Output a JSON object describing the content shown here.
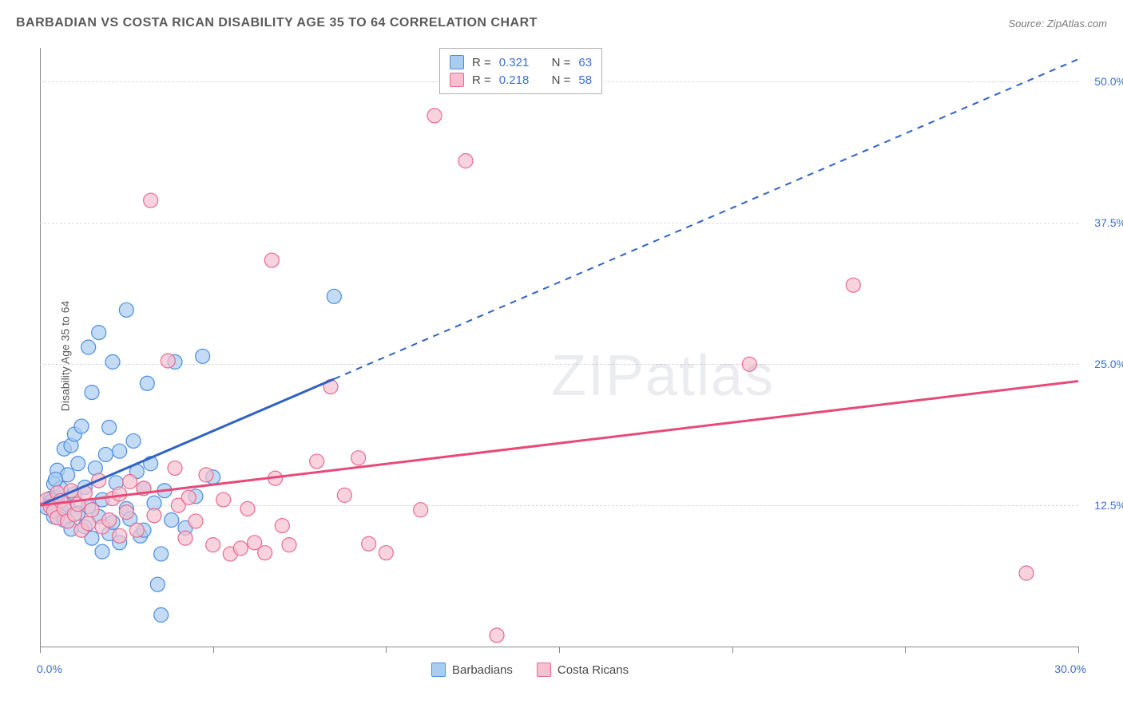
{
  "title": "BARBADIAN VS COSTA RICAN DISABILITY AGE 35 TO 64 CORRELATION CHART",
  "source": "Source: ZipAtlas.com",
  "y_axis_label": "Disability Age 35 to 64",
  "watermark": {
    "prefix": "ZIP",
    "suffix": "atlas"
  },
  "chart": {
    "type": "scatter",
    "background_color": "#ffffff",
    "grid_color": "#d8d8d8",
    "axis_color": "#888888",
    "tick_label_color": "#3b6fd4",
    "x_axis": {
      "min": 0,
      "max": 30,
      "tick_step": 5,
      "visible_labels": [
        {
          "v": 0,
          "t": "0.0%"
        },
        {
          "v": 30,
          "t": "30.0%"
        }
      ]
    },
    "y_axis": {
      "min": 0,
      "max": 53,
      "gridlines": [
        12.5,
        25,
        37.5,
        50
      ],
      "labels": [
        {
          "v": 12.5,
          "t": "12.5%"
        },
        {
          "v": 25,
          "t": "25.0%"
        },
        {
          "v": 37.5,
          "t": "37.5%"
        },
        {
          "v": 50,
          "t": "50.0%"
        }
      ]
    },
    "series": [
      {
        "name": "Barbadians",
        "color_fill": "#a9ccf1",
        "color_stroke": "#4b8de0",
        "marker_radius": 9,
        "marker_opacity": 0.7,
        "trend_line": {
          "color": "#2f62c5",
          "width": 3,
          "solid_end_x": 8.5,
          "dashed_end_x": 30,
          "y_at_0": 12.5,
          "y_at_30": 52
        },
        "r_value": "0.321",
        "n_value": "63",
        "points": [
          [
            0.2,
            12.3
          ],
          [
            0.3,
            13.1
          ],
          [
            0.3,
            12.8
          ],
          [
            0.4,
            14.4
          ],
          [
            0.4,
            11.5
          ],
          [
            0.5,
            15.6
          ],
          [
            0.5,
            13.2
          ],
          [
            0.6,
            12.1
          ],
          [
            0.6,
            14.0
          ],
          [
            0.7,
            17.5
          ],
          [
            0.7,
            11.2
          ],
          [
            0.8,
            15.2
          ],
          [
            0.8,
            12.6
          ],
          [
            0.9,
            17.8
          ],
          [
            0.9,
            10.4
          ],
          [
            1.0,
            18.8
          ],
          [
            1.0,
            13.5
          ],
          [
            1.1,
            16.2
          ],
          [
            1.1,
            11.8
          ],
          [
            1.2,
            19.5
          ],
          [
            1.3,
            14.1
          ],
          [
            1.3,
            10.6
          ],
          [
            1.4,
            26.5
          ],
          [
            1.4,
            12.4
          ],
          [
            1.5,
            22.5
          ],
          [
            1.5,
            9.6
          ],
          [
            1.6,
            15.8
          ],
          [
            1.7,
            27.8
          ],
          [
            1.7,
            11.5
          ],
          [
            1.8,
            13.0
          ],
          [
            1.8,
            8.4
          ],
          [
            1.9,
            17.0
          ],
          [
            2.0,
            10.0
          ],
          [
            2.0,
            19.4
          ],
          [
            2.1,
            25.2
          ],
          [
            2.1,
            11.0
          ],
          [
            2.2,
            14.5
          ],
          [
            2.3,
            9.2
          ],
          [
            2.3,
            17.3
          ],
          [
            2.5,
            29.8
          ],
          [
            2.5,
            12.2
          ],
          [
            2.6,
            11.3
          ],
          [
            2.7,
            18.2
          ],
          [
            2.8,
            15.5
          ],
          [
            2.9,
            9.8
          ],
          [
            3.0,
            10.3
          ],
          [
            3.0,
            14.0
          ],
          [
            3.1,
            23.3
          ],
          [
            3.2,
            16.2
          ],
          [
            3.3,
            12.7
          ],
          [
            3.4,
            5.5
          ],
          [
            3.5,
            8.2
          ],
          [
            3.5,
            2.8
          ],
          [
            3.6,
            13.8
          ],
          [
            3.8,
            11.2
          ],
          [
            3.9,
            25.2
          ],
          [
            4.2,
            10.5
          ],
          [
            4.5,
            13.3
          ],
          [
            4.7,
            25.7
          ],
          [
            5.0,
            15.0
          ],
          [
            8.5,
            31.0
          ],
          [
            0.35,
            12.9
          ],
          [
            0.45,
            14.8
          ]
        ]
      },
      {
        "name": "Costa Ricans",
        "color_fill": "#f5c0cf",
        "color_stroke": "#e86a90",
        "marker_radius": 9,
        "marker_opacity": 0.7,
        "trend_line": {
          "color": "#e84a77",
          "width": 3,
          "solid_end_x": 30,
          "dashed_end_x": 30,
          "y_at_0": 12.5,
          "y_at_30": 23.5
        },
        "r_value": "0.218",
        "n_value": "58",
        "points": [
          [
            0.2,
            13.0
          ],
          [
            0.3,
            12.4
          ],
          [
            0.4,
            12.0
          ],
          [
            0.5,
            13.6
          ],
          [
            0.5,
            11.4
          ],
          [
            0.6,
            12.9
          ],
          [
            0.7,
            12.2
          ],
          [
            0.8,
            11.1
          ],
          [
            0.9,
            13.8
          ],
          [
            1.0,
            11.7
          ],
          [
            1.1,
            12.6
          ],
          [
            1.2,
            10.3
          ],
          [
            1.3,
            13.6
          ],
          [
            1.4,
            10.9
          ],
          [
            1.5,
            12.1
          ],
          [
            1.7,
            14.7
          ],
          [
            1.8,
            10.6
          ],
          [
            2.0,
            11.2
          ],
          [
            2.1,
            13.1
          ],
          [
            2.3,
            9.8
          ],
          [
            2.5,
            11.9
          ],
          [
            2.6,
            14.6
          ],
          [
            2.8,
            10.3
          ],
          [
            3.0,
            14.0
          ],
          [
            3.3,
            11.6
          ],
          [
            3.7,
            25.3
          ],
          [
            3.9,
            15.8
          ],
          [
            4.0,
            12.5
          ],
          [
            4.2,
            9.6
          ],
          [
            4.5,
            11.1
          ],
          [
            4.8,
            15.2
          ],
          [
            5.0,
            9.0
          ],
          [
            5.3,
            13.0
          ],
          [
            5.5,
            8.2
          ],
          [
            5.8,
            8.7
          ],
          [
            6.0,
            12.2
          ],
          [
            6.2,
            9.2
          ],
          [
            6.5,
            8.3
          ],
          [
            6.7,
            34.2
          ],
          [
            7.0,
            10.7
          ],
          [
            7.2,
            9.0
          ],
          [
            3.2,
            39.5
          ],
          [
            8.0,
            16.4
          ],
          [
            8.4,
            23.0
          ],
          [
            8.8,
            13.4
          ],
          [
            9.2,
            16.7
          ],
          [
            9.5,
            9.1
          ],
          [
            10.0,
            8.3
          ],
          [
            11.0,
            12.1
          ],
          [
            11.4,
            47.0
          ],
          [
            12.3,
            43.0
          ],
          [
            13.2,
            1.0
          ],
          [
            20.5,
            25.0
          ],
          [
            23.5,
            32.0
          ],
          [
            28.5,
            6.5
          ],
          [
            2.3,
            13.5
          ],
          [
            4.3,
            13.2
          ],
          [
            6.8,
            14.9
          ]
        ]
      }
    ],
    "stats_box": {
      "r_label": "R =",
      "n_label": "N ="
    },
    "bottom_legend": {
      "series1": "Barbadians",
      "series2": "Costa Ricans"
    }
  }
}
